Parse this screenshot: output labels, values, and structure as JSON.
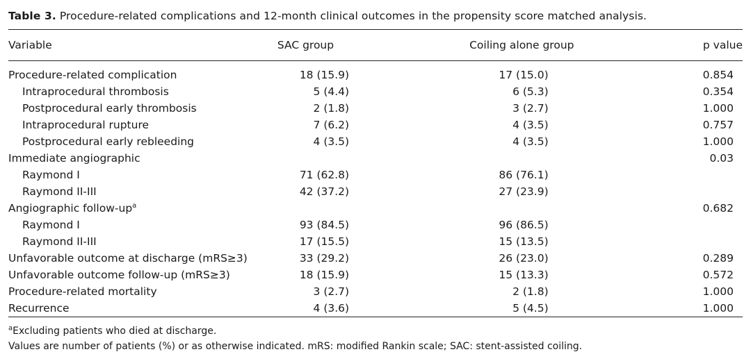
{
  "caption": {
    "label": "Table 3.",
    "text": "Procedure-related complications and 12-month clinical outcomes in the propensity score matched analysis."
  },
  "header": {
    "variable": "Variable",
    "sac": "SAC group",
    "coil": "Coiling alone group",
    "p": "p value"
  },
  "rows": [
    {
      "variable": "Procedure-related complication",
      "sup": "",
      "sub": false,
      "sac": "18 (15.9)",
      "coil": "17 (15.0)",
      "p": "0.854"
    },
    {
      "variable": "Intraprocedural thrombosis",
      "sup": "",
      "sub": true,
      "sac": "5 (4.4)",
      "coil": "6 (5.3)",
      "p": "0.354"
    },
    {
      "variable": "Postprocedural early thrombosis",
      "sup": "",
      "sub": true,
      "sac": "2 (1.8)",
      "coil": "3 (2.7)",
      "p": "1.000"
    },
    {
      "variable": "Intraprocedural rupture",
      "sup": "",
      "sub": true,
      "sac": "7 (6.2)",
      "coil": "4 (3.5)",
      "p": "0.757"
    },
    {
      "variable": "Postprocedural early rebleeding",
      "sup": "",
      "sub": true,
      "sac": "4 (3.5)",
      "coil": "4 (3.5)",
      "p": "1.000"
    },
    {
      "variable": "Immediate angiographic",
      "sup": "",
      "sub": false,
      "sac": "",
      "coil": "",
      "p": "0.03"
    },
    {
      "variable": "Raymond I",
      "sup": "",
      "sub": true,
      "sac": "71 (62.8)",
      "coil": "86 (76.1)",
      "p": ""
    },
    {
      "variable": "Raymond II-III",
      "sup": "",
      "sub": true,
      "sac": "42 (37.2)",
      "coil": "27 (23.9)",
      "p": ""
    },
    {
      "variable": "Angiographic follow-up",
      "sup": "a",
      "sub": false,
      "sac": "",
      "coil": "",
      "p": "0.682"
    },
    {
      "variable": "Raymond I",
      "sup": "",
      "sub": true,
      "sac": "93 (84.5)",
      "coil": "96 (86.5)",
      "p": ""
    },
    {
      "variable": "Raymond II-III",
      "sup": "",
      "sub": true,
      "sac": "17 (15.5)",
      "coil": "15 (13.5)",
      "p": ""
    },
    {
      "variable": "Unfavorable outcome at discharge (mRS≥3)",
      "sup": "",
      "sub": false,
      "sac": "33 (29.2)",
      "coil": "26 (23.0)",
      "p": "0.289"
    },
    {
      "variable": "Unfavorable outcome follow-up (mRS≥3)",
      "sup": "",
      "sub": false,
      "sac": "18 (15.9)",
      "coil": "15 (13.3)",
      "p": "0.572"
    },
    {
      "variable": "Procedure-related mortality",
      "sup": "",
      "sub": false,
      "sac": "3 (2.7)",
      "coil": "2 (1.8)",
      "p": "1.000"
    },
    {
      "variable": "Recurrence",
      "sup": "",
      "sub": false,
      "sac": "4 (3.6)",
      "coil": "5 (4.5)",
      "p": "1.000"
    }
  ],
  "footnotes": {
    "a_mark": "a",
    "a_text": "Excluding patients who died at discharge.",
    "general": "Values are number of patients (%) or as otherwise indicated. mRS: modified Rankin scale; SAC: stent-assisted coiling."
  }
}
